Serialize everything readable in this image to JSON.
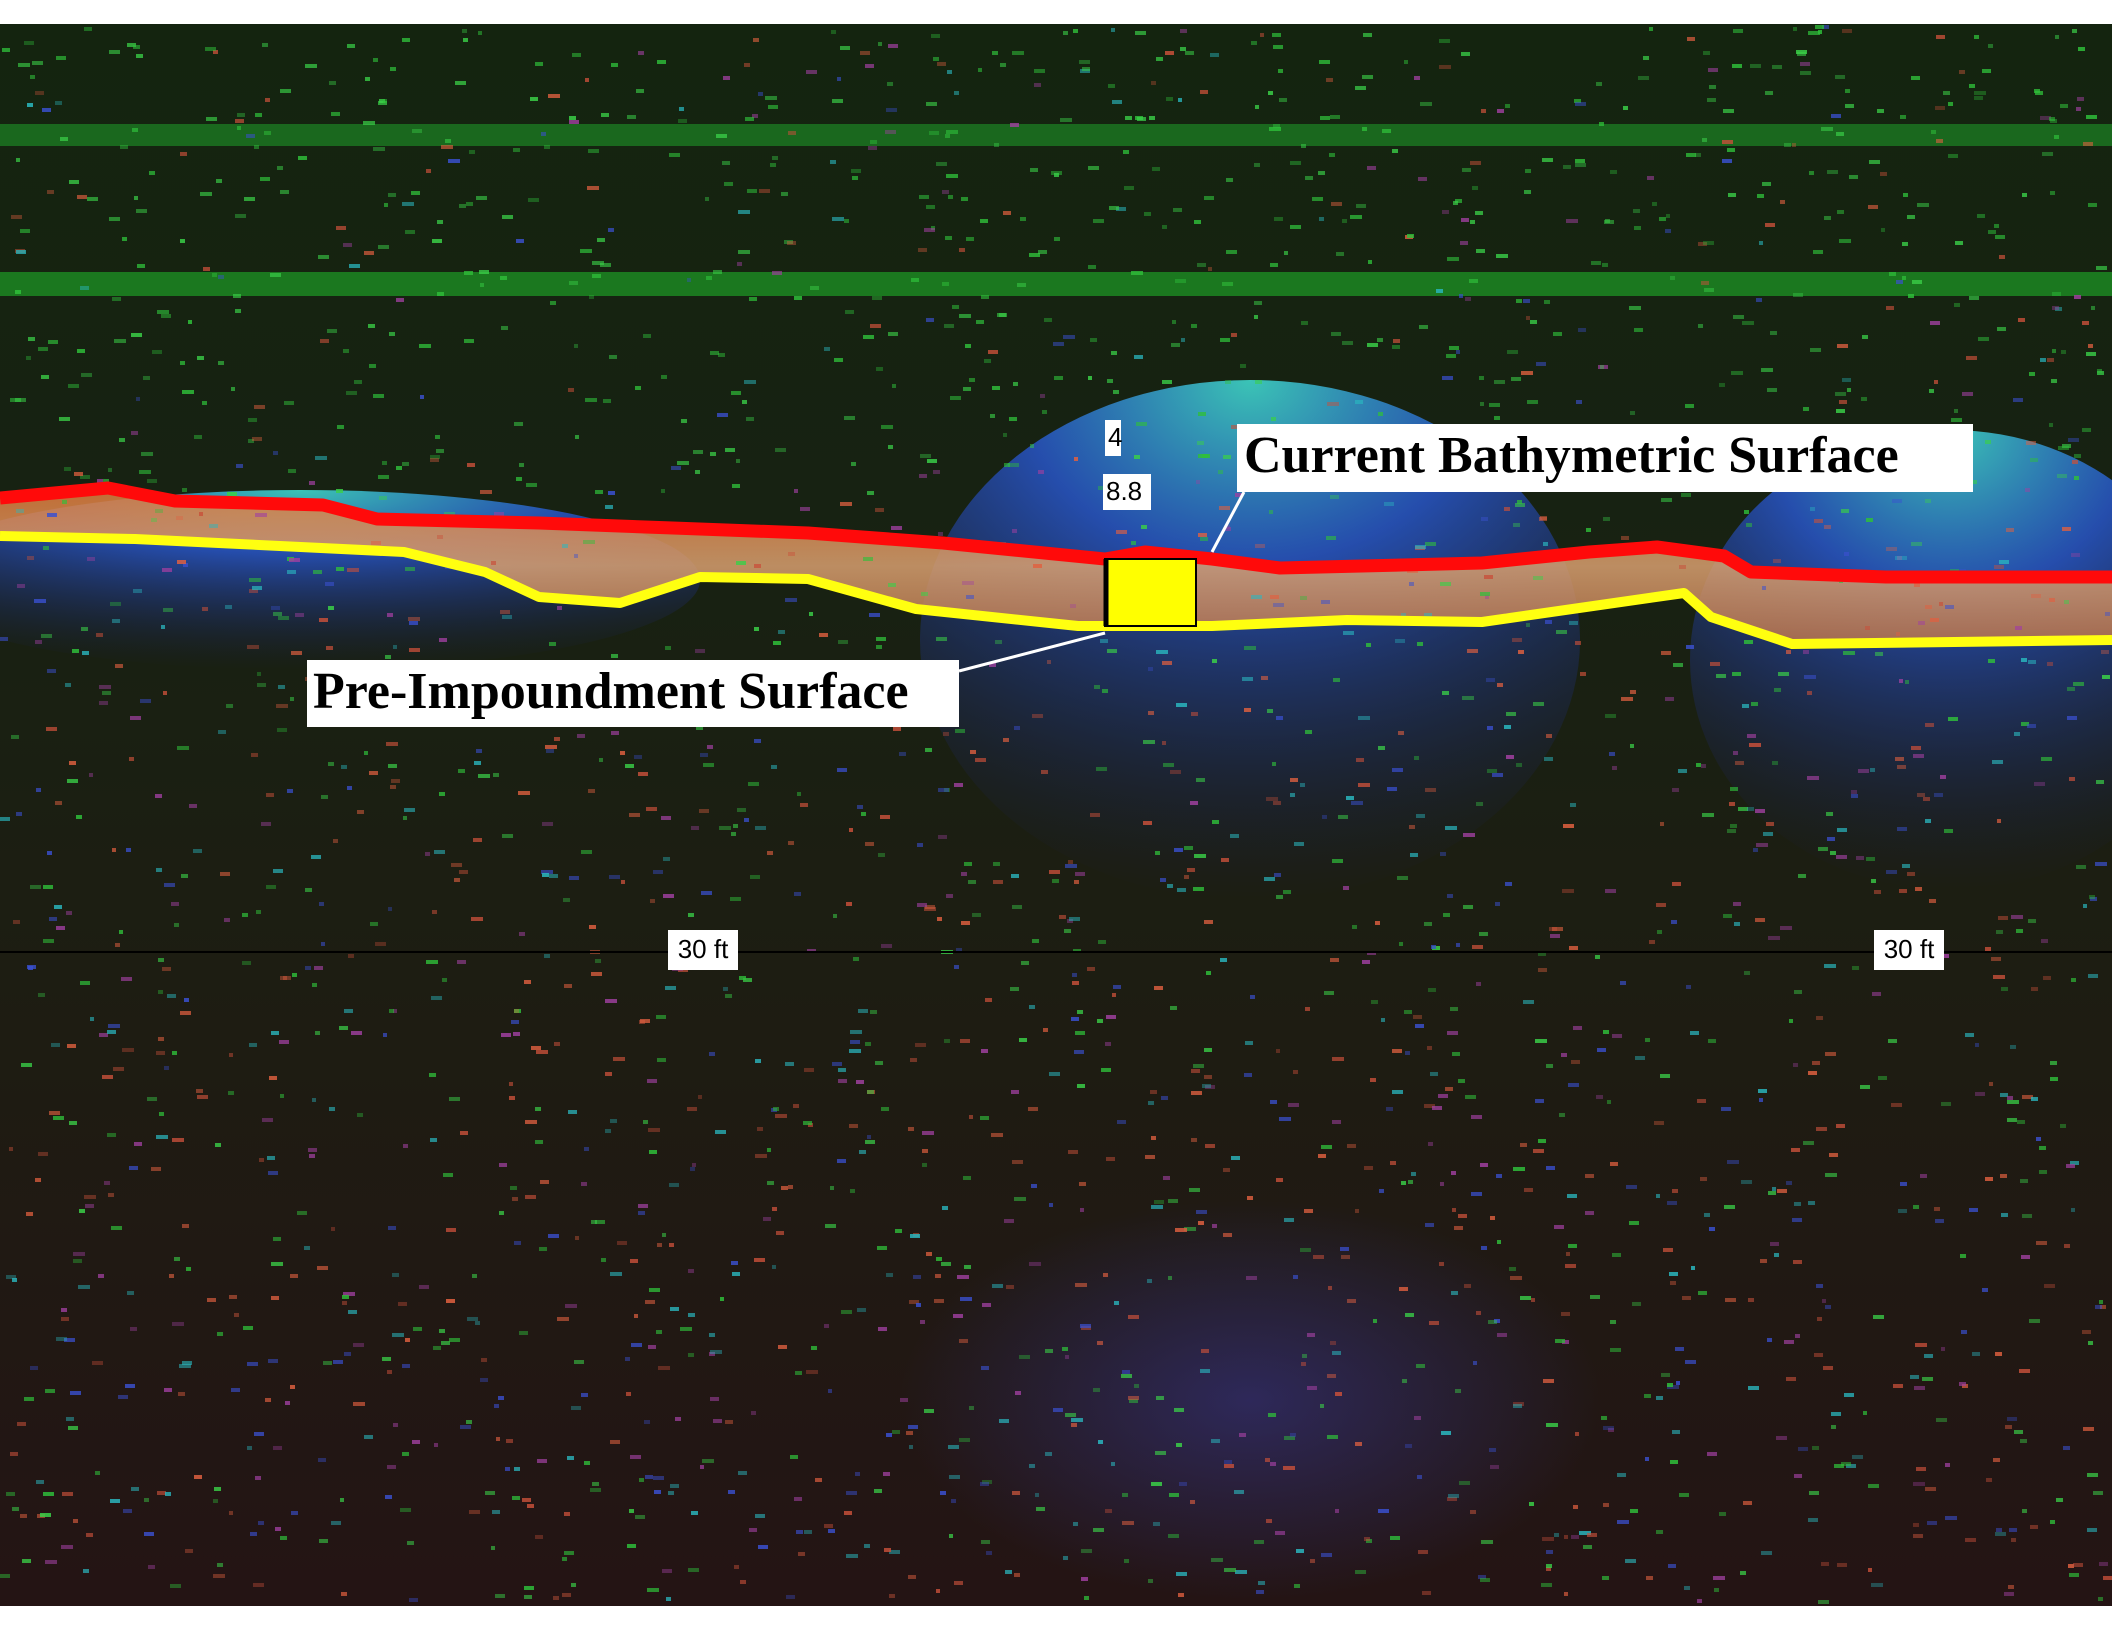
{
  "annotations": {
    "current_surface": "Current Bathymetric Surface",
    "pre_impoundment_surface": "Pre-Impoundment Surface",
    "marker_top": "4",
    "marker_value": "8.8",
    "depth_label_left": "30 ft",
    "depth_label_right": "30 ft"
  }
}
